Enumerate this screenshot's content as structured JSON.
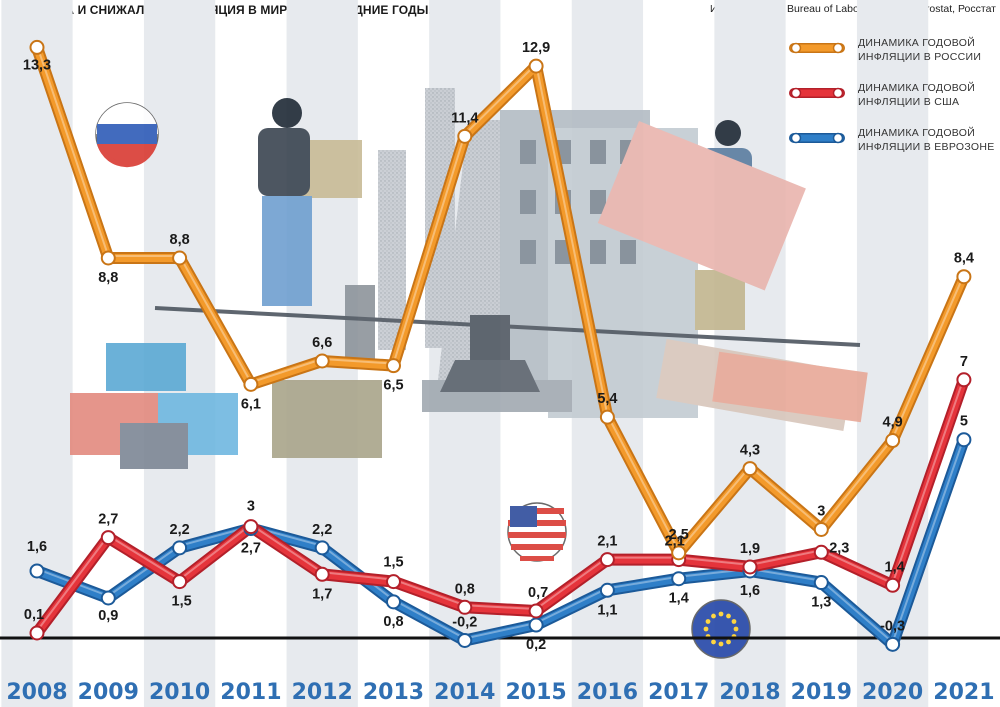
{
  "header": {
    "title": "КАК РОСЛА И СНИЖАЛАСЬ ИНФЛЯЦИЯ В МИРЕ В ПОСЛЕДНИЕ ГОДЫ, %",
    "source": "Источники: U.S Bureau of Labor Statistics, Eurostat, Росстат"
  },
  "chart_data": {
    "type": "line",
    "title": "КАК РОСЛА И СНИЖАЛАСЬ ИНФЛЯЦИЯ В МИРЕ В ПОСЛЕДНИЕ ГОДЫ, %",
    "x": [
      "2008",
      "2009",
      "2010",
      "2011",
      "2012",
      "2013",
      "2014",
      "2015",
      "2016",
      "2017",
      "2018",
      "2019",
      "2020",
      "2021"
    ],
    "series": [
      {
        "name": "ДИНАМИКА ГОДОВОЙ ИНФЛЯЦИИ В РОССИИ",
        "legend_lines": [
          "ДИНАМИКА ГОДОВОЙ",
          "ИНФЛЯЦИИ В РОССИИ"
        ],
        "color": "#f39a2b",
        "values": [
          13.3,
          8.8,
          8.8,
          6.1,
          6.6,
          6.5,
          11.4,
          12.9,
          5.4,
          2.5,
          4.3,
          3.0,
          4.9,
          8.4
        ],
        "labels": [
          "13,3",
          "8,8",
          "8,8",
          "6,1",
          "6,6",
          "6,5",
          "11,4",
          "12,9",
          "5,4",
          "2,5",
          "4,3",
          "3",
          "4,9",
          "8,4"
        ]
      },
      {
        "name": "ДИНАМИКА ГОДОВОЙ ИНФЛЯЦИИ В США",
        "legend_lines": [
          "ДИНАМИКА ГОДОВОЙ",
          "ИНФЛЯЦИИ В США"
        ],
        "color": "#e5343b",
        "values": [
          0.1,
          2.7,
          1.5,
          3.0,
          1.7,
          1.5,
          0.8,
          0.7,
          2.1,
          2.1,
          1.9,
          2.3,
          1.4,
          7.0
        ],
        "labels": [
          "0,1",
          "2,7",
          "1,5",
          "3",
          "1,7",
          "1,5",
          "0,8",
          "0,7",
          "2,1",
          "2,1",
          "1,9",
          "2,3",
          "1,4",
          "7"
        ]
      },
      {
        "name": "ДИНАМИКА ГОДОВОЙ ИНФЛЯЦИИ В ЕВРОЗОНЕ",
        "legend_lines": [
          "ДИНАМИКА ГОДОВОЙ",
          "ИНФЛЯЦИИ В ЕВРОЗОНЕ"
        ],
        "color": "#2f7fc8",
        "values": [
          1.6,
          0.9,
          2.2,
          2.7,
          2.2,
          0.8,
          -0.2,
          0.2,
          1.1,
          1.4,
          1.6,
          1.3,
          -0.3,
          5.0
        ],
        "labels": [
          "1,6",
          "0,9",
          "2,2",
          "2,7",
          "2,2",
          "0,8",
          "-0,2",
          "0,2",
          "1,1",
          "1,4",
          "1,6",
          "1,3",
          "-0,3",
          "5"
        ]
      }
    ],
    "grid": "vertical alternating bands",
    "legend_position": "top-right",
    "colors": {
      "year_label": "#2f6fb3",
      "band": "#e7eaee",
      "zero_line": "#111111"
    }
  }
}
